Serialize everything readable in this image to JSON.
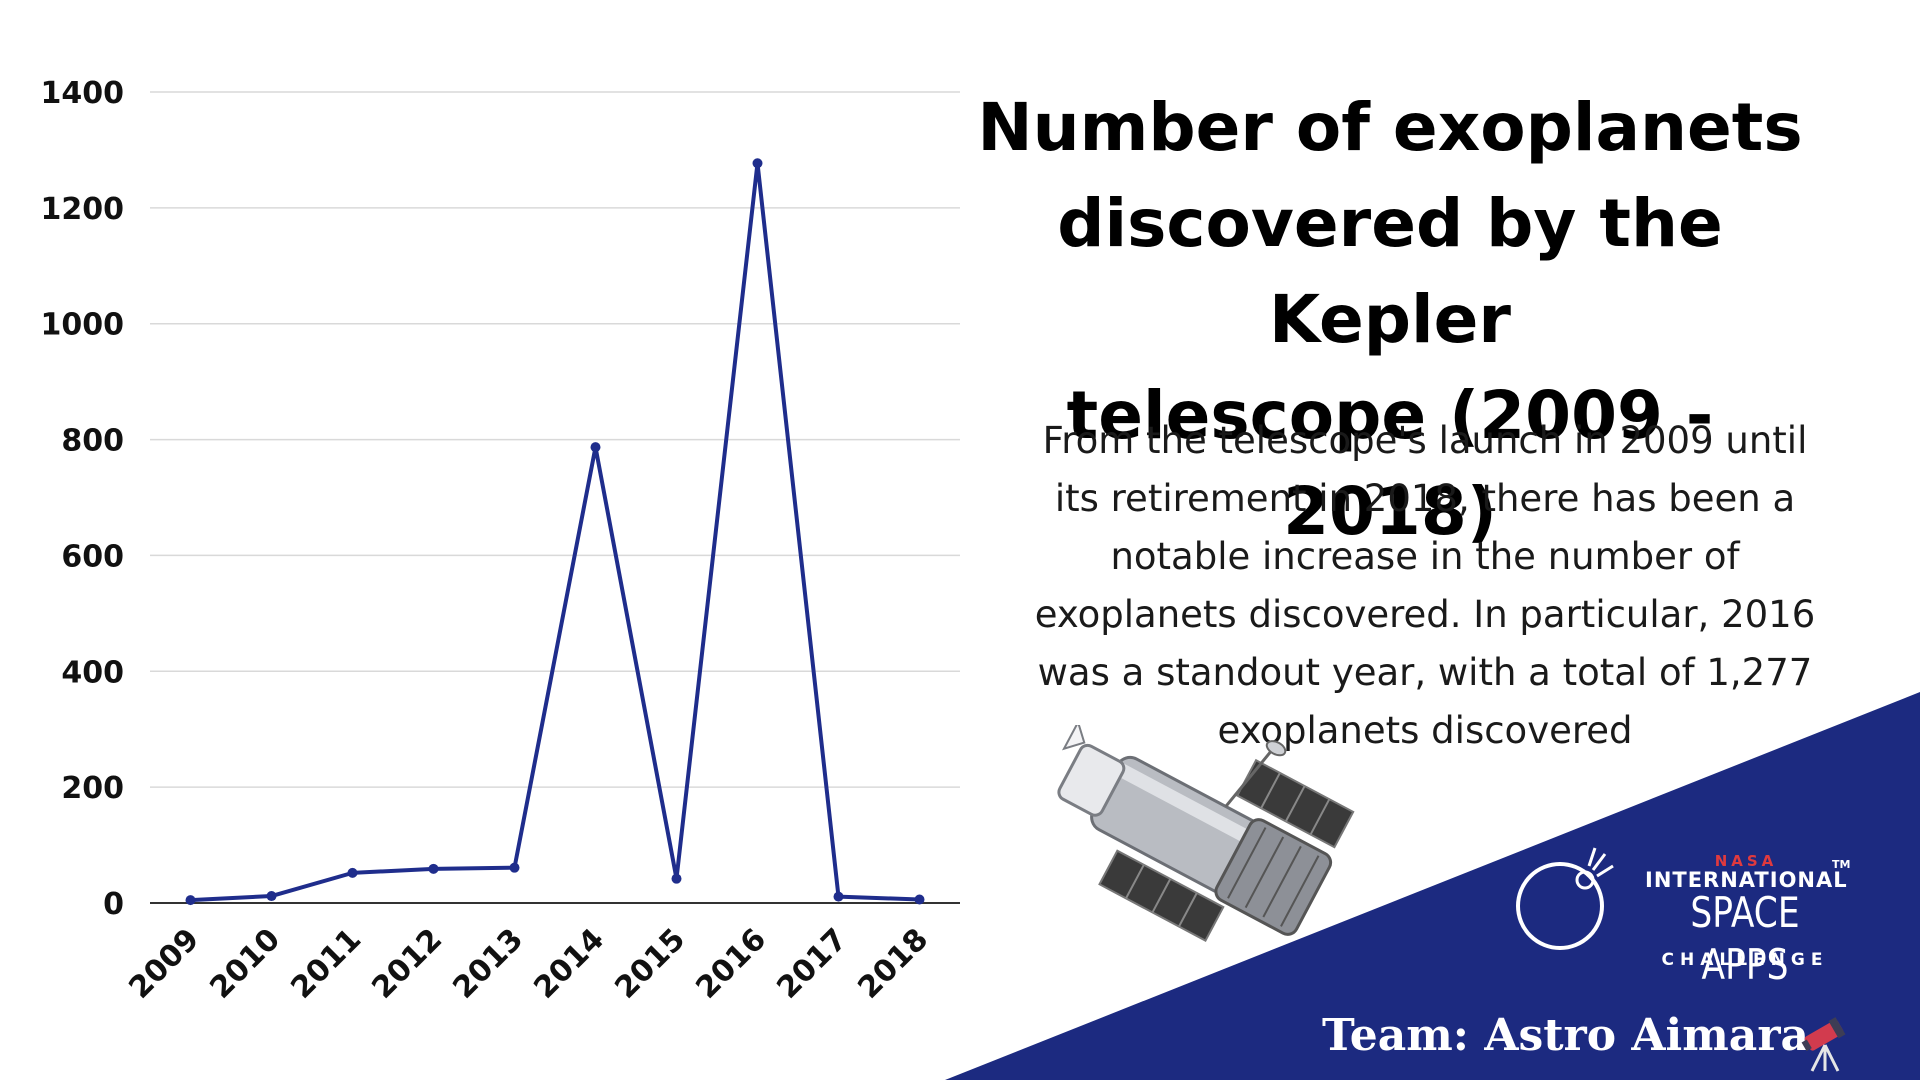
{
  "title_lines": [
    "Number of exoplanets",
    "discovered by the Kepler",
    "telescope (2009 - 2018)"
  ],
  "description_lines": [
    "From the telescope's launch in 2009 until",
    "its retirement in 2018, there has been a",
    "notable increase in the number of",
    "exoplanets discovered. In particular, 2016",
    "was a standout year, with a total of 1,277",
    "exoplanets discovered"
  ],
  "team_label": "Team: Astro Aimara",
  "logo": {
    "line1": "NASA",
    "line2": "INTERNATIONAL",
    "line3": "SPACE APPS",
    "line4": "CHALLENGE",
    "trademark": "TM"
  },
  "colors": {
    "series": "#1f2d8c",
    "banner": "#1c2a80",
    "grid": "#d9d9d9",
    "nasa_red": "#e03a3e"
  },
  "icons": [
    "telescope-illustration",
    "space-apps-logo-icon",
    "telescope-emoji-icon"
  ],
  "chart_data": {
    "type": "line",
    "categories": [
      "2009",
      "2010",
      "2011",
      "2012",
      "2013",
      "2014",
      "2015",
      "2016",
      "2017",
      "2018"
    ],
    "series": [
      {
        "values": [
          5,
          12,
          52,
          59,
          61,
          787,
          42,
          1277,
          11,
          6
        ]
      }
    ],
    "ylim": [
      0,
      1400
    ],
    "yticks": [
      0,
      200,
      400,
      600,
      800,
      1000,
      1200,
      1400
    ],
    "grid": true,
    "legend": "none"
  }
}
